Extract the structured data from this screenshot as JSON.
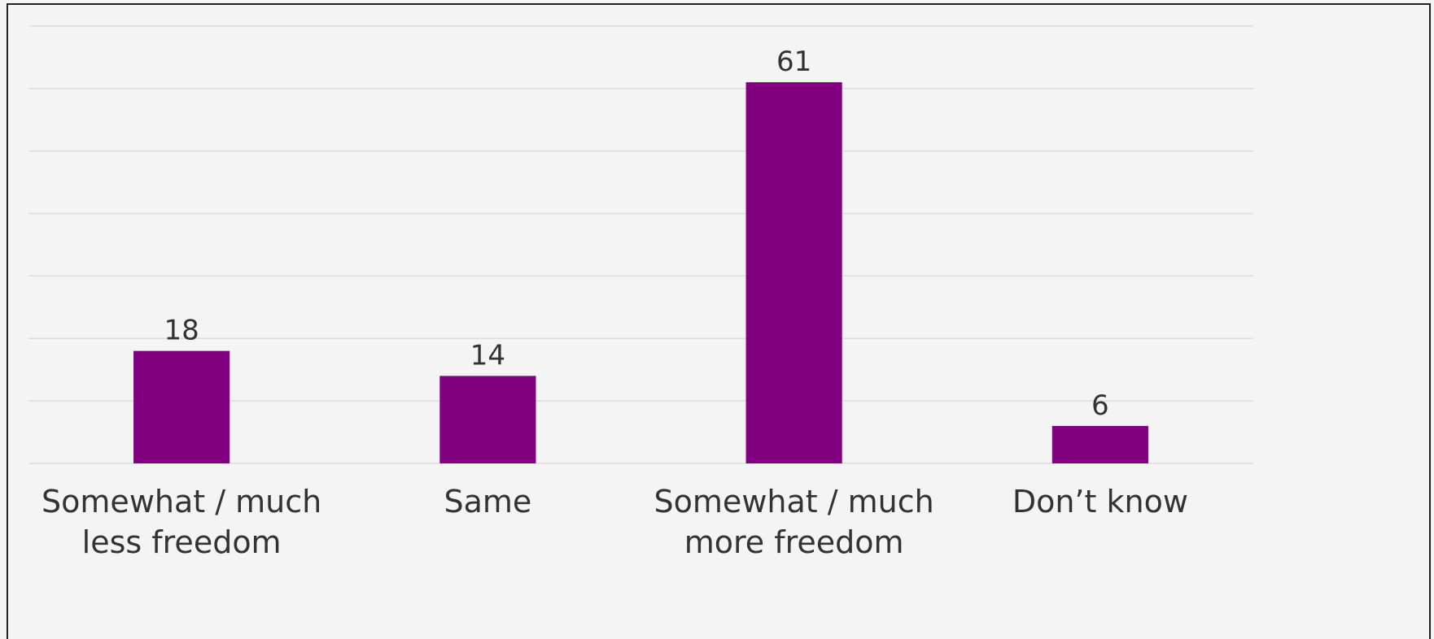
{
  "chart_data": {
    "type": "bar",
    "categories": [
      "Somewhat / much less freedom",
      "Same",
      "Somewhat / much more freedom",
      "Don’t know"
    ],
    "values": [
      18,
      14,
      61,
      6
    ],
    "color": "#800080",
    "ylim": [
      0,
      70
    ],
    "yticks": [
      0,
      10,
      20,
      30,
      40,
      50,
      60,
      70
    ],
    "grid": true
  }
}
